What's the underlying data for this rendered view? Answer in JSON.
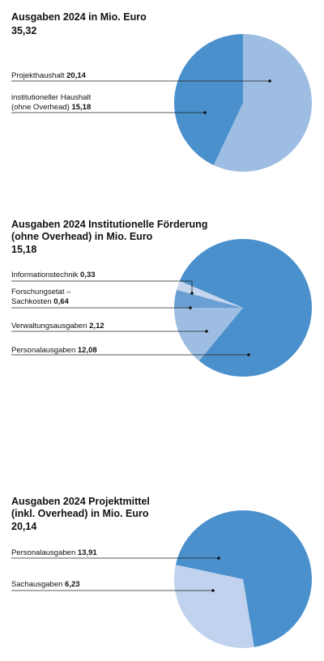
{
  "chart_data": [
    {
      "type": "pie",
      "title": "Ausgaben 2024 in Mio. Euro",
      "subtitle": "35,32",
      "categories": [
        "Projekthaushalt",
        "institutioneller Haushalt (ohne Overhead)"
      ],
      "values": [
        20.14,
        15.18
      ],
      "value_labels": [
        "20,14",
        "15,18"
      ],
      "colors": [
        "#9dbde3",
        "#4a90cc"
      ]
    },
    {
      "type": "pie",
      "title": "Ausgaben 2024 Institutionelle Förderung (ohne Overhead) in Mio. Euro",
      "subtitle": "15,18",
      "categories": [
        "Informationstechnik",
        "Forschungsetat – Sachkosten",
        "Verwaltungsausgaben",
        "Personalausgaben"
      ],
      "values": [
        0.33,
        0.64,
        2.12,
        12.08
      ],
      "value_labels": [
        "0,33",
        "0,64",
        "2,12",
        "12,08"
      ],
      "colors": [
        "#c5d6ee",
        "#6a9fd4",
        "#9dbde3",
        "#4a90cc"
      ]
    },
    {
      "type": "pie",
      "title": "Ausgaben 2024 Projektmittel (inkl. Overhead) in Mio. Euro",
      "subtitle": "20,14",
      "categories": [
        "Personalausgaben",
        "Sachausgaben"
      ],
      "values": [
        13.91,
        6.23
      ],
      "value_labels": [
        "13,91",
        "6,23"
      ],
      "colors": [
        "#4a90cc",
        "#c0d2ee"
      ]
    }
  ]
}
